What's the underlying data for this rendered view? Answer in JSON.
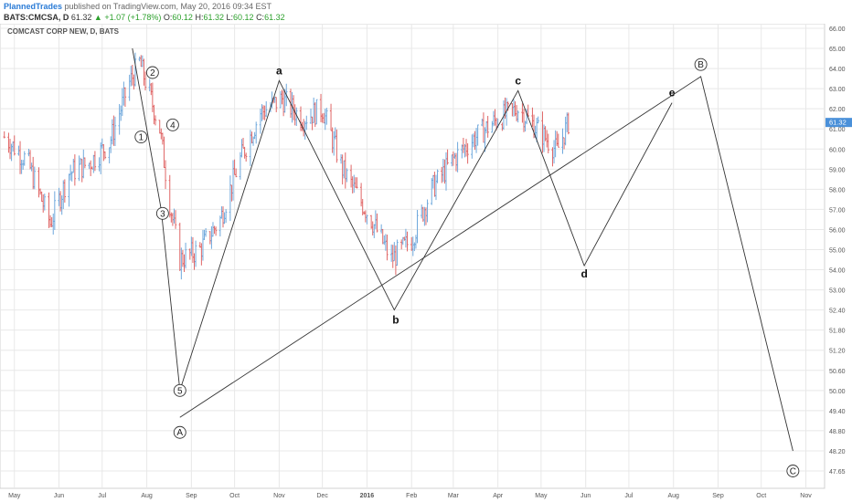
{
  "header": {
    "author": "PlannedTrades",
    "published": "published on TradingView.com, May 20, 2016 09:34 EST",
    "symbol": "BATS:CMCSA, D",
    "last": "61.32",
    "change": "+1.07 (+1.78%)",
    "open_label": "O:",
    "open": "60.12",
    "high_label": "H:",
    "high": "61.32",
    "low_label": "L:",
    "low": "60.12",
    "close_label": "C:",
    "close": "61.32"
  },
  "chart_title": "COMCAST CORP NEW, D, BATS",
  "colors": {
    "up": "#6fa8dc",
    "down": "#e06666",
    "line": "#333333",
    "grid": "#e8e8e8",
    "last_price_bg": "#4a90d9"
  },
  "last_price_label": "61.32",
  "chart_data": {
    "type": "line",
    "title": "COMCAST CORP NEW, D, BATS",
    "y_ticks": [
      47.65,
      48.2,
      48.8,
      49.4,
      50.0,
      50.6,
      51.2,
      51.8,
      52.4,
      53.0,
      54.0,
      55.0,
      56.0,
      57.0,
      58.0,
      59.0,
      60.0,
      61.0,
      62.0,
      63.0,
      64.0,
      65.0,
      66.0
    ],
    "y_tick_labels": [
      "47.65",
      "48.20",
      "48.80",
      "49.40",
      "50.00",
      "50.60",
      "51.20",
      "51.80",
      "52.40",
      "53.00",
      "54.00",
      "55.00",
      "56.00",
      "57.00",
      "58.00",
      "59.00",
      "60.00",
      "61.00",
      "62.00",
      "63.00",
      "64.00",
      "65.00",
      "66.00"
    ],
    "x_ticks": [
      {
        "label": "May",
        "date": "2015-05-01"
      },
      {
        "label": "Jun",
        "date": "2015-06-01"
      },
      {
        "label": "Jul",
        "date": "2015-07-01"
      },
      {
        "label": "Aug",
        "date": "2015-08-01"
      },
      {
        "label": "Sep",
        "date": "2015-09-01"
      },
      {
        "label": "Oct",
        "date": "2015-10-01"
      },
      {
        "label": "Nov",
        "date": "2015-11-01"
      },
      {
        "label": "Dec",
        "date": "2015-12-01"
      },
      {
        "label": "2016",
        "date": "2016-01-01"
      },
      {
        "label": "Feb",
        "date": "2016-02-01"
      },
      {
        "label": "Mar",
        "date": "2016-03-01"
      },
      {
        "label": "Apr",
        "date": "2016-04-01"
      },
      {
        "label": "May",
        "date": "2016-05-01"
      },
      {
        "label": "Jun",
        "date": "2016-06-01"
      },
      {
        "label": "Jul",
        "date": "2016-07-01"
      },
      {
        "label": "Aug",
        "date": "2016-08-01"
      },
      {
        "label": "Sep",
        "date": "2016-09-01"
      },
      {
        "label": "Oct",
        "date": "2016-10-01"
      },
      {
        "label": "Nov",
        "date": "2016-11-01"
      }
    ],
    "price_path": [
      {
        "date": "2015-04-24",
        "price": 60.6
      },
      {
        "date": "2015-05-10",
        "price": 59.4
      },
      {
        "date": "2015-05-26",
        "price": 56.3
      },
      {
        "date": "2015-06-08",
        "price": 58.8
      },
      {
        "date": "2015-06-22",
        "price": 59.3
      },
      {
        "date": "2015-07-06",
        "price": 60.3
      },
      {
        "date": "2015-07-20",
        "price": 63.3
      },
      {
        "date": "2015-07-27",
        "price": 64.3
      },
      {
        "date": "2015-08-03",
        "price": 62.7
      },
      {
        "date": "2015-08-10",
        "price": 61.0
      },
      {
        "date": "2015-08-17",
        "price": 57.3
      },
      {
        "date": "2015-08-24",
        "price": 54.5
      },
      {
        "date": "2015-09-07",
        "price": 55.0
      },
      {
        "date": "2015-09-21",
        "price": 56.5
      },
      {
        "date": "2015-10-05",
        "price": 59.5
      },
      {
        "date": "2015-10-19",
        "price": 61.8
      },
      {
        "date": "2015-11-03",
        "price": 62.5
      },
      {
        "date": "2015-11-17",
        "price": 61.5
      },
      {
        "date": "2015-12-01",
        "price": 62.0
      },
      {
        "date": "2015-12-15",
        "price": 59.0
      },
      {
        "date": "2016-01-04",
        "price": 56.5
      },
      {
        "date": "2016-01-18",
        "price": 54.5
      },
      {
        "date": "2016-02-01",
        "price": 55.5
      },
      {
        "date": "2016-02-15",
        "price": 58.0
      },
      {
        "date": "2016-03-01",
        "price": 59.5
      },
      {
        "date": "2016-03-15",
        "price": 60.5
      },
      {
        "date": "2016-04-01",
        "price": 61.5
      },
      {
        "date": "2016-04-15",
        "price": 62.0
      },
      {
        "date": "2016-05-01",
        "price": 60.8
      },
      {
        "date": "2016-05-12",
        "price": 59.9
      },
      {
        "date": "2016-05-20",
        "price": 61.32
      }
    ],
    "wave_lines": [
      {
        "name": "",
        "points": [
          {
            "date": "2015-07-22",
            "price": 65.0
          },
          {
            "date": "2015-08-11",
            "price": 57.0
          },
          {
            "date": "2015-08-24",
            "price": 50.0
          },
          {
            "date": "2015-11-01",
            "price": 63.4
          },
          {
            "date": "2016-01-20",
            "price": 52.4
          },
          {
            "date": "2016-04-15",
            "price": 62.9
          },
          {
            "date": "2016-05-31",
            "price": 54.2
          },
          {
            "date": "2016-07-31",
            "price": 62.3
          }
        ]
      },
      {
        "name": "",
        "points": [
          {
            "date": "2015-08-24",
            "price": 49.2
          },
          {
            "date": "2016-08-20",
            "price": 63.6
          },
          {
            "date": "2016-10-23",
            "price": 48.2
          }
        ]
      }
    ],
    "annotations": [
      {
        "text": "1",
        "date": "2015-07-28",
        "price": 60.6,
        "style": "circle"
      },
      {
        "text": "2",
        "date": "2015-08-05",
        "price": 63.8,
        "style": "circle"
      },
      {
        "text": "3",
        "date": "2015-08-12",
        "price": 56.8,
        "style": "circle"
      },
      {
        "text": "4",
        "date": "2015-08-19",
        "price": 61.2,
        "style": "circle"
      },
      {
        "text": "5",
        "date": "2015-08-24",
        "price": 50.0,
        "style": "circle"
      },
      {
        "text": "A",
        "date": "2015-08-24",
        "price": 48.75,
        "style": "circle"
      },
      {
        "text": "a",
        "date": "2015-11-01",
        "price": 63.9,
        "style": "bold"
      },
      {
        "text": "b",
        "date": "2016-01-21",
        "price": 52.1,
        "style": "bold"
      },
      {
        "text": "c",
        "date": "2016-04-15",
        "price": 63.4,
        "style": "bold"
      },
      {
        "text": "d",
        "date": "2016-05-31",
        "price": 53.8,
        "style": "bold"
      },
      {
        "text": "e",
        "date": "2016-07-31",
        "price": 62.8,
        "style": "bold"
      },
      {
        "text": "B",
        "date": "2016-08-20",
        "price": 64.2,
        "style": "circle"
      },
      {
        "text": "C",
        "date": "2016-10-23",
        "price": 47.65,
        "style": "circle"
      }
    ]
  }
}
